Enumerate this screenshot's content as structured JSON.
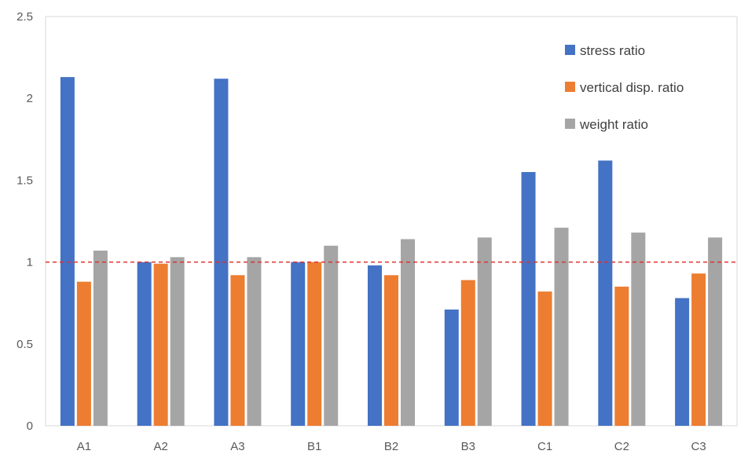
{
  "chart_data": {
    "type": "bar",
    "categories": [
      "A1",
      "A2",
      "A3",
      "B1",
      "B2",
      "B3",
      "C1",
      "C2",
      "C3"
    ],
    "series": [
      {
        "name": "stress ratio",
        "color": "#4472C4",
        "values": [
          2.13,
          1.0,
          2.12,
          1.0,
          0.98,
          0.71,
          1.55,
          1.62,
          0.78
        ]
      },
      {
        "name": "vertical disp. ratio",
        "color": "#ED7D31",
        "values": [
          0.88,
          0.99,
          0.92,
          1.0,
          0.92,
          0.89,
          0.82,
          0.85,
          0.93
        ]
      },
      {
        "name": "weight ratio",
        "color": "#A5A5A5",
        "values": [
          1.07,
          1.03,
          1.03,
          1.1,
          1.14,
          1.15,
          1.21,
          1.18,
          1.15
        ]
      }
    ],
    "yticks": [
      "0",
      "0.5",
      "1",
      "1.5",
      "2",
      "2.5"
    ],
    "ylim": [
      0,
      2.5
    ],
    "reference_line": {
      "value": 1,
      "color": "#E03030",
      "style": "dashed"
    },
    "legend_position": "top-right",
    "grid": false
  }
}
